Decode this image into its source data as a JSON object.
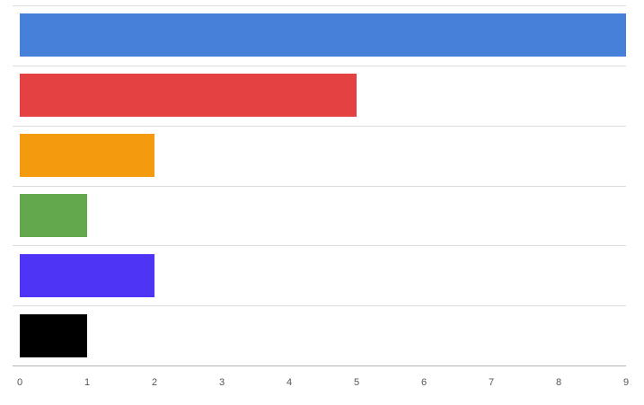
{
  "chart_data": {
    "type": "bar",
    "orientation": "horizontal",
    "title": "",
    "xlabel": "",
    "ylabel": "",
    "categories": [
      "",
      "",
      "",
      "",
      "",
      ""
    ],
    "values": [
      9,
      5,
      2,
      1,
      2,
      1
    ],
    "colors": [
      "#4680d8",
      "#e44242",
      "#f39a0f",
      "#63a84c",
      "#4e35f5",
      "#000000"
    ],
    "xlim": [
      0,
      9
    ],
    "xticks": [
      0,
      1,
      2,
      3,
      4,
      5,
      6,
      7,
      8,
      9
    ],
    "grid": true,
    "legend": "none"
  }
}
